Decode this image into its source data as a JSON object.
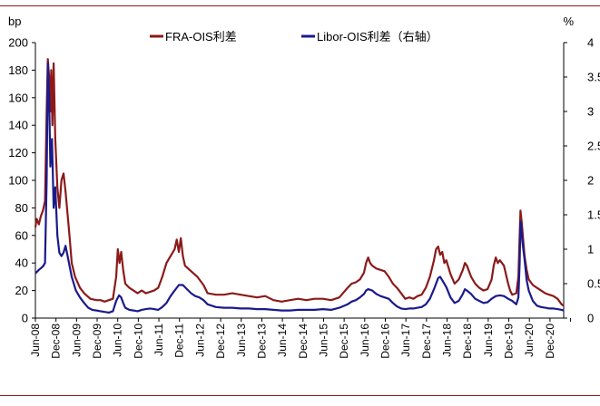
{
  "chart_data": {
    "type": "line",
    "title": "",
    "xlabel": "",
    "ylabel_left": "bp",
    "ylabel_right": "%",
    "ylim_left": [
      0,
      200
    ],
    "ylim_right": [
      0,
      4
    ],
    "yticks_left": [
      "0",
      "20",
      "40",
      "60",
      "80",
      "100",
      "120",
      "140",
      "160",
      "180",
      "200"
    ],
    "yticks_right": [
      "0",
      "0.5",
      "1",
      "1.5",
      "2",
      "2.5",
      "3",
      "3.5",
      "4"
    ],
    "x_range": [
      2008.417,
      2021.25
    ],
    "x_tick_labels": [
      "Jun-08",
      "Dec-08",
      "Jun-09",
      "Dec-09",
      "Jun-10",
      "Dec-10",
      "Jun-11",
      "Dec-11",
      "Jun-12",
      "Dec-12",
      "Jun-13",
      "Dec-13",
      "Jun-14",
      "Dec-14",
      "Jun-15",
      "Dec-15",
      "Jun-16",
      "Dec-16",
      "Jun-17",
      "Dec-17",
      "Jun-18",
      "Dec-18",
      "Jun-19",
      "Dec-19",
      "Jun-20",
      "Dec-20"
    ],
    "legend_position": "top",
    "grid": false,
    "series": [
      {
        "name": "FRA-OIS利差",
        "axis": "left",
        "color": "#8b1a1a",
        "points": [
          [
            2008.417,
            66
          ],
          [
            2008.45,
            72
          ],
          [
            2008.5,
            68
          ],
          [
            2008.55,
            74
          ],
          [
            2008.6,
            78
          ],
          [
            2008.65,
            85
          ],
          [
            2008.69,
            150
          ],
          [
            2008.72,
            188
          ],
          [
            2008.75,
            175
          ],
          [
            2008.78,
            150
          ],
          [
            2008.8,
            180
          ],
          [
            2008.83,
            140
          ],
          [
            2008.86,
            185
          ],
          [
            2008.9,
            130
          ],
          [
            2008.95,
            95
          ],
          [
            2009.0,
            80
          ],
          [
            2009.05,
            100
          ],
          [
            2009.1,
            105
          ],
          [
            2009.15,
            92
          ],
          [
            2009.2,
            75
          ],
          [
            2009.25,
            58
          ],
          [
            2009.3,
            40
          ],
          [
            2009.38,
            30
          ],
          [
            2009.5,
            22
          ],
          [
            2009.6,
            18
          ],
          [
            2009.75,
            14
          ],
          [
            2009.9,
            13
          ],
          [
            2010.0,
            13
          ],
          [
            2010.1,
            12
          ],
          [
            2010.2,
            13
          ],
          [
            2010.3,
            14
          ],
          [
            2010.38,
            30
          ],
          [
            2010.42,
            50
          ],
          [
            2010.46,
            40
          ],
          [
            2010.5,
            48
          ],
          [
            2010.55,
            35
          ],
          [
            2010.6,
            25
          ],
          [
            2010.7,
            22
          ],
          [
            2010.8,
            20
          ],
          [
            2010.9,
            18
          ],
          [
            2011.0,
            20
          ],
          [
            2011.1,
            18
          ],
          [
            2011.2,
            19
          ],
          [
            2011.3,
            20
          ],
          [
            2011.4,
            22
          ],
          [
            2011.5,
            30
          ],
          [
            2011.6,
            40
          ],
          [
            2011.7,
            45
          ],
          [
            2011.8,
            50
          ],
          [
            2011.85,
            57
          ],
          [
            2011.9,
            48
          ],
          [
            2011.95,
            58
          ],
          [
            2012.0,
            45
          ],
          [
            2012.05,
            38
          ],
          [
            2012.2,
            34
          ],
          [
            2012.35,
            30
          ],
          [
            2012.5,
            24
          ],
          [
            2012.6,
            18
          ],
          [
            2012.8,
            17
          ],
          [
            2013.0,
            17
          ],
          [
            2013.2,
            18
          ],
          [
            2013.4,
            17
          ],
          [
            2013.6,
            16
          ],
          [
            2013.8,
            15
          ],
          [
            2014.0,
            16
          ],
          [
            2014.2,
            13
          ],
          [
            2014.4,
            12
          ],
          [
            2014.6,
            13
          ],
          [
            2014.8,
            14
          ],
          [
            2015.0,
            13
          ],
          [
            2015.2,
            14
          ],
          [
            2015.4,
            14
          ],
          [
            2015.6,
            13
          ],
          [
            2015.8,
            15
          ],
          [
            2016.0,
            22
          ],
          [
            2016.1,
            25
          ],
          [
            2016.2,
            26
          ],
          [
            2016.3,
            28
          ],
          [
            2016.4,
            33
          ],
          [
            2016.45,
            40
          ],
          [
            2016.5,
            44
          ],
          [
            2016.55,
            40
          ],
          [
            2016.6,
            38
          ],
          [
            2016.7,
            36
          ],
          [
            2016.8,
            35
          ],
          [
            2016.9,
            34
          ],
          [
            2017.0,
            30
          ],
          [
            2017.1,
            25
          ],
          [
            2017.2,
            22
          ],
          [
            2017.3,
            18
          ],
          [
            2017.4,
            14
          ],
          [
            2017.5,
            15
          ],
          [
            2017.6,
            14
          ],
          [
            2017.7,
            16
          ],
          [
            2017.8,
            17
          ],
          [
            2017.9,
            22
          ],
          [
            2018.0,
            30
          ],
          [
            2018.1,
            42
          ],
          [
            2018.15,
            50
          ],
          [
            2018.2,
            52
          ],
          [
            2018.25,
            46
          ],
          [
            2018.3,
            48
          ],
          [
            2018.35,
            40
          ],
          [
            2018.4,
            42
          ],
          [
            2018.5,
            32
          ],
          [
            2018.6,
            25
          ],
          [
            2018.7,
            28
          ],
          [
            2018.8,
            35
          ],
          [
            2018.85,
            40
          ],
          [
            2018.9,
            38
          ],
          [
            2019.0,
            30
          ],
          [
            2019.1,
            25
          ],
          [
            2019.2,
            22
          ],
          [
            2019.3,
            20
          ],
          [
            2019.4,
            21
          ],
          [
            2019.5,
            28
          ],
          [
            2019.55,
            38
          ],
          [
            2019.6,
            44
          ],
          [
            2019.65,
            40
          ],
          [
            2019.7,
            42
          ],
          [
            2019.8,
            38
          ],
          [
            2019.9,
            25
          ],
          [
            2019.95,
            20
          ],
          [
            2020.0,
            17
          ],
          [
            2020.1,
            18
          ],
          [
            2020.15,
            30
          ],
          [
            2020.18,
            60
          ],
          [
            2020.2,
            78
          ],
          [
            2020.23,
            70
          ],
          [
            2020.27,
            55
          ],
          [
            2020.3,
            45
          ],
          [
            2020.35,
            35
          ],
          [
            2020.4,
            28
          ],
          [
            2020.5,
            24
          ],
          [
            2020.6,
            22
          ],
          [
            2020.7,
            20
          ],
          [
            2020.8,
            18
          ],
          [
            2020.9,
            17
          ],
          [
            2021.0,
            16
          ],
          [
            2021.1,
            14
          ],
          [
            2021.15,
            12
          ],
          [
            2021.2,
            10
          ],
          [
            2021.25,
            9
          ]
        ]
      },
      {
        "name": "Libor-OIS利差（右轴）",
        "axis": "right",
        "color": "#1a1a8c",
        "points": [
          [
            2008.417,
            0.65
          ],
          [
            2008.5,
            0.7
          ],
          [
            2008.6,
            0.75
          ],
          [
            2008.65,
            0.8
          ],
          [
            2008.69,
            2.0
          ],
          [
            2008.72,
            3.7
          ],
          [
            2008.75,
            3.2
          ],
          [
            2008.78,
            2.2
          ],
          [
            2008.82,
            2.6
          ],
          [
            2008.86,
            1.6
          ],
          [
            2008.9,
            1.9
          ],
          [
            2008.95,
            1.2
          ],
          [
            2009.0,
            0.95
          ],
          [
            2009.05,
            0.9
          ],
          [
            2009.1,
            0.95
          ],
          [
            2009.15,
            1.05
          ],
          [
            2009.2,
            0.9
          ],
          [
            2009.3,
            0.6
          ],
          [
            2009.4,
            0.4
          ],
          [
            2009.5,
            0.3
          ],
          [
            2009.6,
            0.22
          ],
          [
            2009.7,
            0.15
          ],
          [
            2009.8,
            0.12
          ],
          [
            2009.9,
            0.11
          ],
          [
            2010.0,
            0.1
          ],
          [
            2010.1,
            0.09
          ],
          [
            2010.2,
            0.08
          ],
          [
            2010.3,
            0.1
          ],
          [
            2010.38,
            0.25
          ],
          [
            2010.45,
            0.33
          ],
          [
            2010.5,
            0.3
          ],
          [
            2010.55,
            0.22
          ],
          [
            2010.6,
            0.15
          ],
          [
            2010.7,
            0.12
          ],
          [
            2010.8,
            0.11
          ],
          [
            2010.9,
            0.1
          ],
          [
            2011.0,
            0.12
          ],
          [
            2011.1,
            0.13
          ],
          [
            2011.2,
            0.14
          ],
          [
            2011.3,
            0.13
          ],
          [
            2011.4,
            0.12
          ],
          [
            2011.5,
            0.16
          ],
          [
            2011.6,
            0.22
          ],
          [
            2011.7,
            0.32
          ],
          [
            2011.8,
            0.4
          ],
          [
            2011.9,
            0.48
          ],
          [
            2012.0,
            0.48
          ],
          [
            2012.1,
            0.42
          ],
          [
            2012.2,
            0.36
          ],
          [
            2012.3,
            0.32
          ],
          [
            2012.4,
            0.3
          ],
          [
            2012.5,
            0.26
          ],
          [
            2012.6,
            0.2
          ],
          [
            2012.8,
            0.16
          ],
          [
            2013.0,
            0.15
          ],
          [
            2013.2,
            0.15
          ],
          [
            2013.4,
            0.14
          ],
          [
            2013.6,
            0.14
          ],
          [
            2013.8,
            0.13
          ],
          [
            2014.0,
            0.13
          ],
          [
            2014.2,
            0.12
          ],
          [
            2014.4,
            0.11
          ],
          [
            2014.6,
            0.11
          ],
          [
            2014.8,
            0.12
          ],
          [
            2015.0,
            0.12
          ],
          [
            2015.2,
            0.12
          ],
          [
            2015.4,
            0.13
          ],
          [
            2015.6,
            0.12
          ],
          [
            2015.8,
            0.15
          ],
          [
            2016.0,
            0.2
          ],
          [
            2016.1,
            0.24
          ],
          [
            2016.2,
            0.26
          ],
          [
            2016.3,
            0.3
          ],
          [
            2016.4,
            0.35
          ],
          [
            2016.45,
            0.4
          ],
          [
            2016.5,
            0.42
          ],
          [
            2016.6,
            0.4
          ],
          [
            2016.7,
            0.35
          ],
          [
            2016.8,
            0.32
          ],
          [
            2016.9,
            0.3
          ],
          [
            2017.0,
            0.28
          ],
          [
            2017.1,
            0.22
          ],
          [
            2017.2,
            0.17
          ],
          [
            2017.3,
            0.14
          ],
          [
            2017.4,
            0.13
          ],
          [
            2017.5,
            0.14
          ],
          [
            2017.6,
            0.14
          ],
          [
            2017.7,
            0.15
          ],
          [
            2017.8,
            0.16
          ],
          [
            2017.9,
            0.2
          ],
          [
            2018.0,
            0.28
          ],
          [
            2018.1,
            0.42
          ],
          [
            2018.2,
            0.58
          ],
          [
            2018.25,
            0.6
          ],
          [
            2018.3,
            0.55
          ],
          [
            2018.4,
            0.45
          ],
          [
            2018.5,
            0.3
          ],
          [
            2018.6,
            0.22
          ],
          [
            2018.7,
            0.25
          ],
          [
            2018.8,
            0.35
          ],
          [
            2018.85,
            0.42
          ],
          [
            2018.9,
            0.4
          ],
          [
            2019.0,
            0.35
          ],
          [
            2019.1,
            0.28
          ],
          [
            2019.2,
            0.25
          ],
          [
            2019.3,
            0.22
          ],
          [
            2019.4,
            0.23
          ],
          [
            2019.5,
            0.28
          ],
          [
            2019.6,
            0.32
          ],
          [
            2019.7,
            0.33
          ],
          [
            2019.8,
            0.32
          ],
          [
            2019.9,
            0.28
          ],
          [
            2020.0,
            0.25
          ],
          [
            2020.1,
            0.2
          ],
          [
            2020.15,
            0.3
          ],
          [
            2020.18,
            0.8
          ],
          [
            2020.2,
            1.4
          ],
          [
            2020.22,
            1.35
          ],
          [
            2020.25,
            1.1
          ],
          [
            2020.3,
            0.85
          ],
          [
            2020.35,
            0.55
          ],
          [
            2020.4,
            0.4
          ],
          [
            2020.5,
            0.25
          ],
          [
            2020.6,
            0.18
          ],
          [
            2020.7,
            0.16
          ],
          [
            2020.8,
            0.15
          ],
          [
            2020.9,
            0.14
          ],
          [
            2021.0,
            0.14
          ],
          [
            2021.1,
            0.13
          ],
          [
            2021.2,
            0.12
          ],
          [
            2021.25,
            0.11
          ]
        ]
      }
    ]
  }
}
